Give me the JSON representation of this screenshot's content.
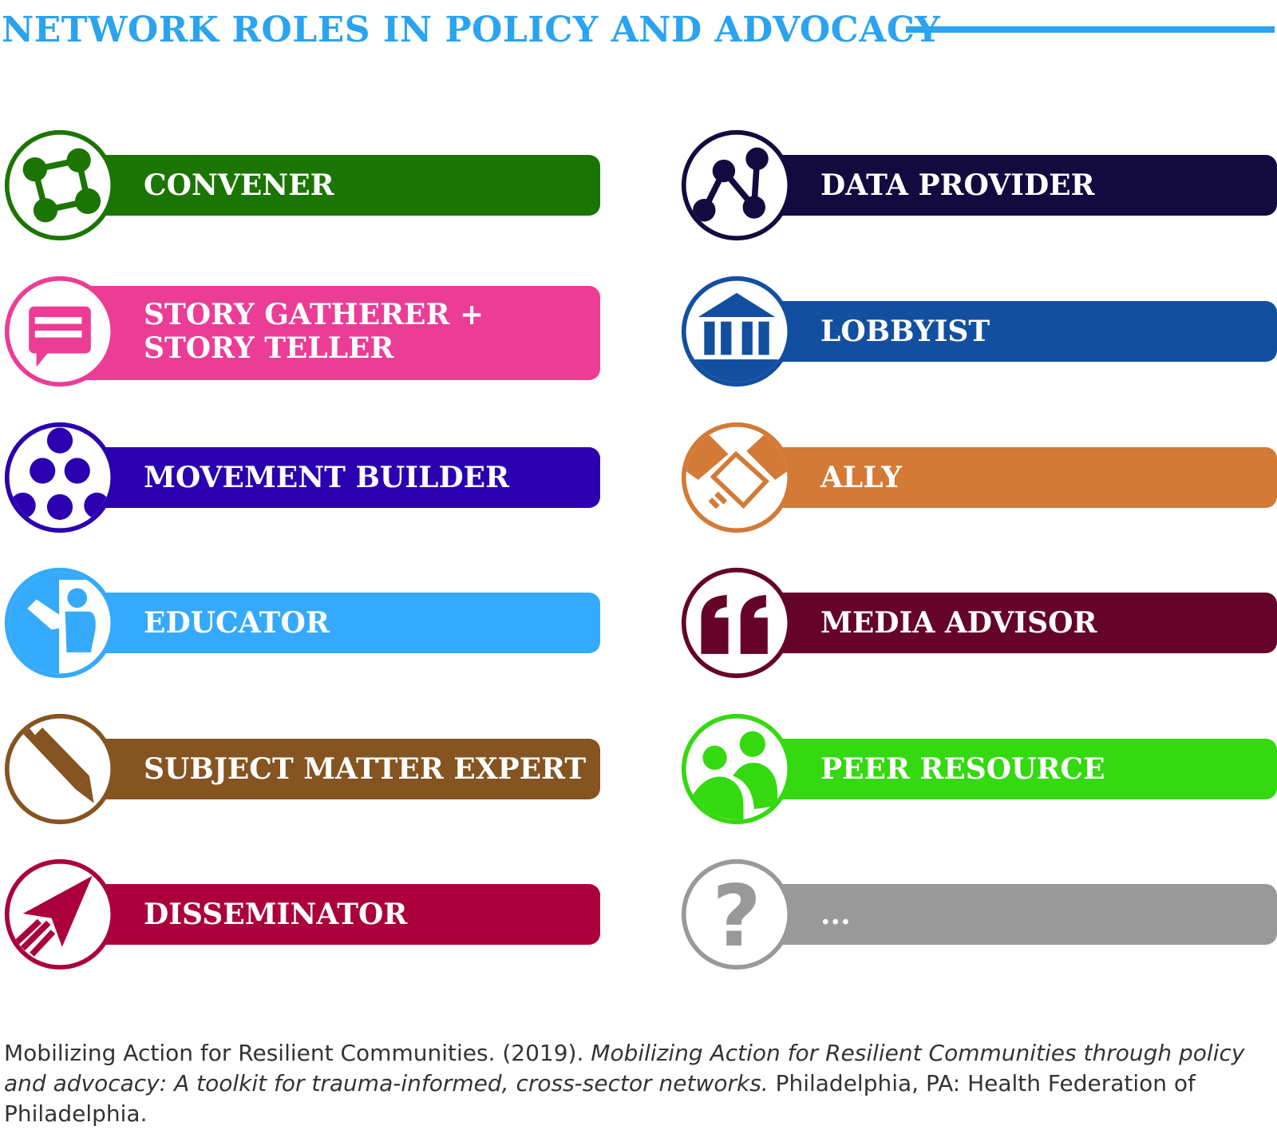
{
  "title": "NETWORK ROLES IN POLICY AND ADVOCACY",
  "roles": [
    {
      "label": "CONVENER",
      "color": "#1c7503",
      "icon": "network-nodes-icon"
    },
    {
      "label": "STORY GATHERER +\nSTORY TELLER",
      "color": "#eb3c96",
      "icon": "speech-bubble-icon"
    },
    {
      "label": "MOVEMENT BUILDER",
      "color": "#2b00b0",
      "icon": "dots-cluster-icon"
    },
    {
      "label": "EDUCATOR",
      "color": "#35aafc",
      "icon": "teacher-icon"
    },
    {
      "label": "SUBJECT MATTER EXPERT",
      "color": "#855421",
      "icon": "pencil-icon"
    },
    {
      "label": "DISSEMINATOR",
      "color": "#ab003c",
      "icon": "paper-plane-icon"
    },
    {
      "label": "DATA PROVIDER",
      "color": "#130a3f",
      "icon": "data-graph-icon"
    },
    {
      "label": "LOBBYIST",
      "color": "#134fa1",
      "icon": "government-building-icon"
    },
    {
      "label": "ALLY",
      "color": "#d27a36",
      "icon": "handshake-icon"
    },
    {
      "label": "MEDIA ADVISOR",
      "color": "#650428",
      "icon": "quote-icon"
    },
    {
      "label": "PEER RESOURCE",
      "color": "#34d90f",
      "icon": "people-icon"
    },
    {
      "label": "...",
      "color": "#999999",
      "icon": "question-mark-icon"
    }
  ],
  "citation": {
    "part1": "Mobilizing Action for Resilient Communities. (2019). ",
    "italic": "Mobilizing Action for Resilient Communities through policy and advocacy: A toolkit for trauma-informed, cross-sector networks.",
    "part2": " Philadelphia, PA: Health Federation of Philadelphia."
  }
}
